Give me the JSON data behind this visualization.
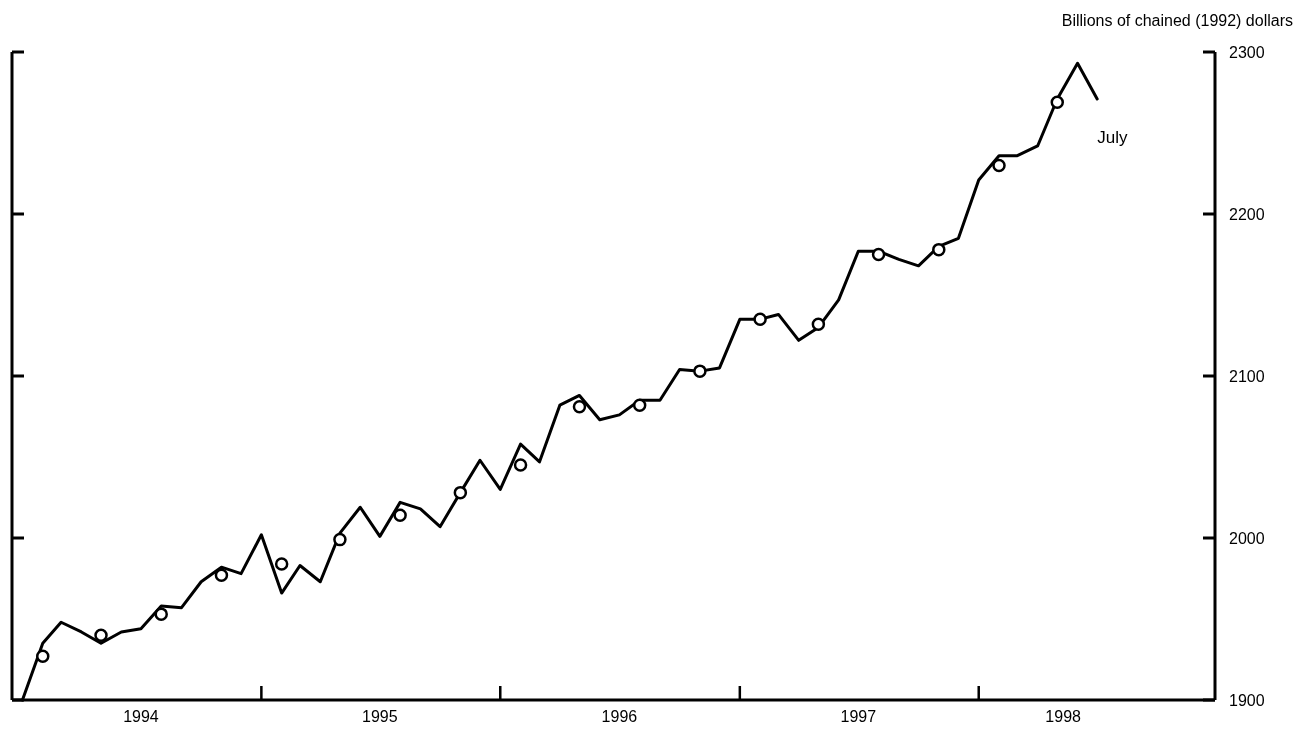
{
  "chart_data": {
    "type": "line",
    "ylabel": "Billions of chained (1992) dollars",
    "x": [
      "1994-01",
      "1994-02",
      "1994-03",
      "1994-04",
      "1994-05",
      "1994-06",
      "1994-07",
      "1994-08",
      "1994-09",
      "1994-10",
      "1994-11",
      "1994-12",
      "1995-01",
      "1995-02",
      "1995-03",
      "1995-04",
      "1995-05",
      "1995-06",
      "1995-07",
      "1995-08",
      "1995-09",
      "1995-10",
      "1995-11",
      "1995-12",
      "1996-01",
      "1996-02",
      "1996-03",
      "1996-04",
      "1996-05",
      "1996-06",
      "1996-07",
      "1996-08",
      "1996-09",
      "1996-10",
      "1996-11",
      "1996-12",
      "1997-01",
      "1997-02",
      "1997-03",
      "1997-04",
      "1997-05",
      "1997-06",
      "1997-07",
      "1997-08",
      "1997-09",
      "1997-10",
      "1997-11",
      "1997-12",
      "1998-01",
      "1998-02",
      "1998-03",
      "1998-04",
      "1998-05",
      "1998-06",
      "1998-07"
    ],
    "series": [
      {
        "color": "#000000",
        "marker": "none",
        "values": [
          1900,
          1935,
          1948,
          1942,
          1935,
          1942,
          1944,
          1958,
          1957,
          1973,
          1982,
          1978,
          2002,
          1966,
          1983,
          1973,
          2003,
          2019,
          2001,
          2022,
          2018,
          2007,
          2028,
          2048,
          2030,
          2058,
          2047,
          2082,
          2088,
          2073,
          2076,
          2085,
          2085,
          2104,
          2103,
          2105,
          2135,
          2135,
          2138,
          2122,
          2130,
          2147,
          2177,
          2177,
          2172,
          2168,
          2180,
          2185,
          2221,
          2236,
          2236,
          2242,
          2271,
          2293,
          2271
        ]
      },
      {
        "type": "scatter",
        "color": "#000000",
        "marker": "circle",
        "x": [
          "1994-02",
          "1994-05",
          "1994-08",
          "1994-11",
          "1995-02",
          "1995-05",
          "1995-08",
          "1995-11",
          "1996-02",
          "1996-05",
          "1996-08",
          "1996-11",
          "1997-02",
          "1997-05",
          "1997-08",
          "1997-11",
          "1998-02",
          "1998-05"
        ],
        "values": [
          1927,
          1940,
          1953,
          1977,
          1984,
          1999,
          2014,
          2028,
          2045,
          2081,
          2082,
          2103,
          2135,
          2132,
          2175,
          2178,
          2230,
          2269
        ]
      }
    ],
    "xlim": [
      "1993-12-16",
      "1998-12-28"
    ],
    "xticks": [
      {
        "value": "1994-07",
        "label": "1994"
      },
      {
        "value": "1995-01",
        "label": null
      },
      {
        "value": "1995-07",
        "label": "1995"
      },
      {
        "value": "1996-01",
        "label": null
      },
      {
        "value": "1996-07",
        "label": "1996"
      },
      {
        "value": "1997-01",
        "label": null
      },
      {
        "value": "1997-07",
        "label": "1997"
      },
      {
        "value": "1998-01",
        "label": null
      },
      {
        "value": "1998-05-10",
        "label": "1998"
      }
    ],
    "ylim": [
      1900,
      2300
    ],
    "yticks": [
      1900,
      2000,
      2100,
      2200,
      2300
    ],
    "annotations": [
      {
        "text": "July",
        "x": "1998-07",
        "y": 2271
      }
    ],
    "grid": false
  }
}
